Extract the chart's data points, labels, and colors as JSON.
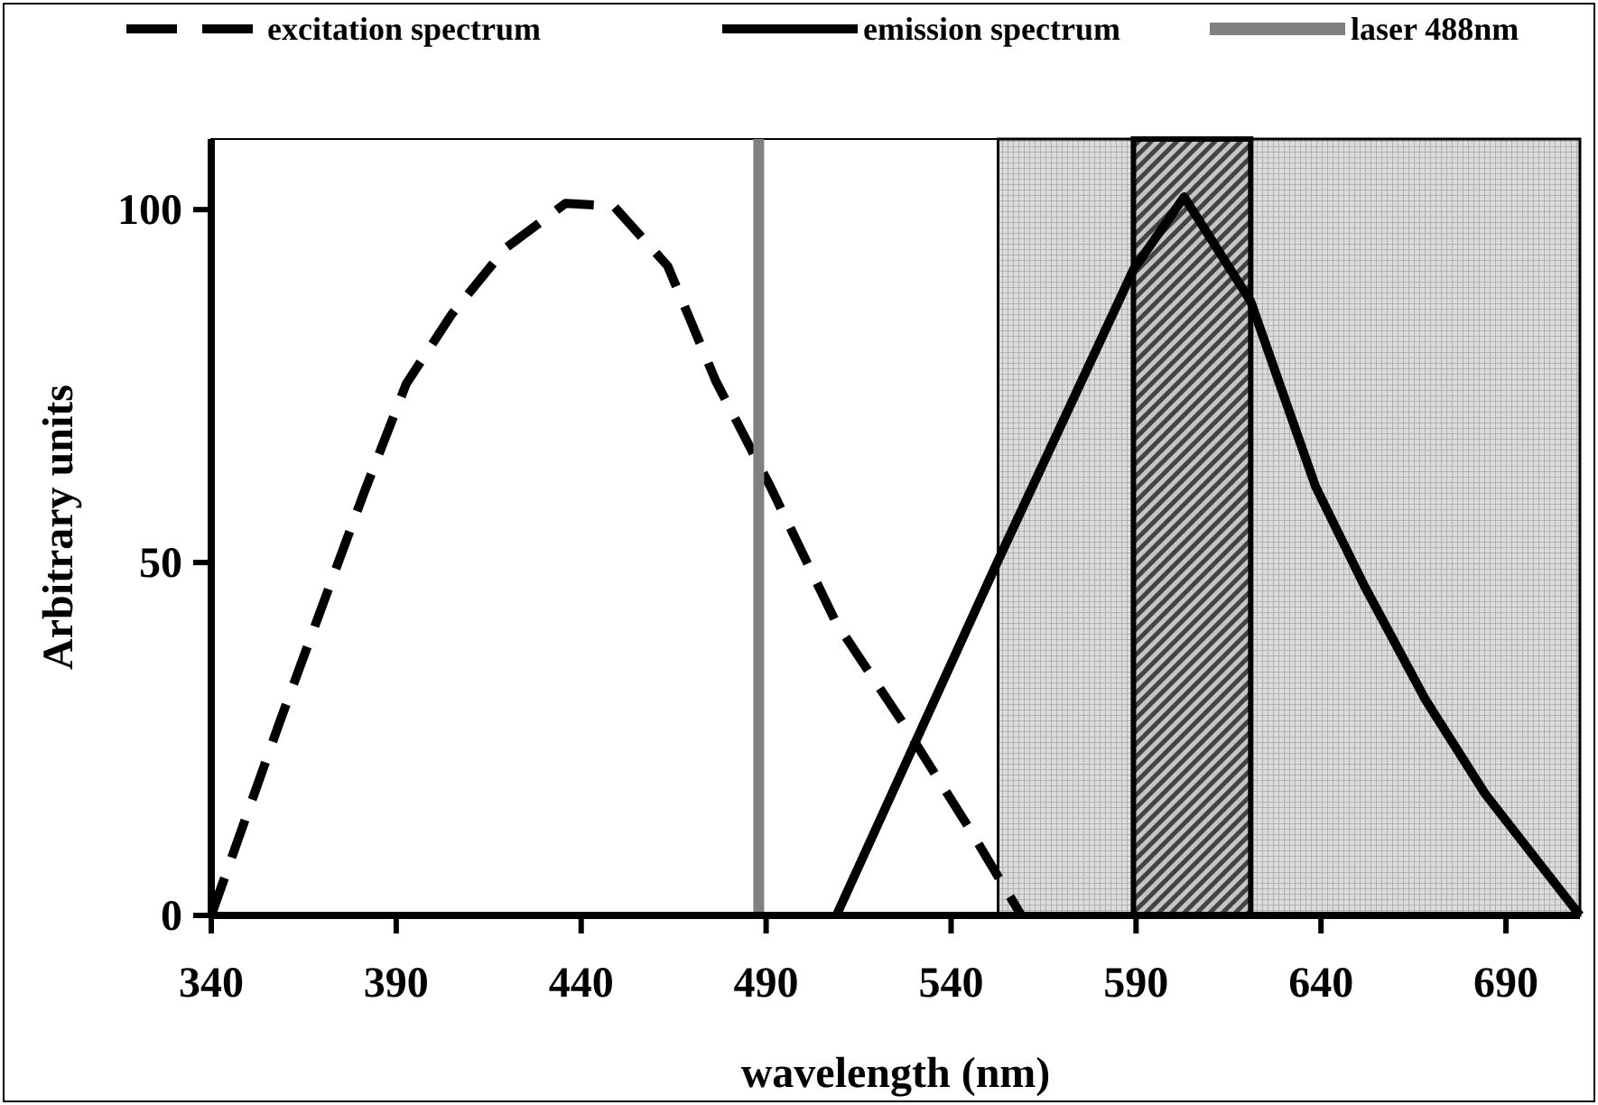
{
  "chart_data": {
    "type": "line",
    "xlabel": "wavelength (nm)",
    "ylabel": "Arbitrary units",
    "xlim": [
      340,
      710
    ],
    "xticks": [
      340,
      390,
      440,
      490,
      540,
      590,
      640,
      690
    ],
    "ylim": [
      0,
      110
    ],
    "yticks": [
      0,
      50,
      100
    ],
    "grid": false,
    "legend": "top",
    "marker": "none",
    "series": [
      {
        "name": "excitation spectrum",
        "color": "#000000",
        "line_style": "dashed",
        "x": [
          340,
          358.5,
          369.9,
          381.3,
          392.7,
          404.9,
          419.5,
          435.8,
          448.8,
          463.4,
          476.4,
          491.1,
          508.9,
          526.8,
          544.7,
          559
        ],
        "values": [
          0,
          27.4,
          43.7,
          59.9,
          75.3,
          85.1,
          94.5,
          100.9,
          100.5,
          92,
          75.7,
          60.8,
          41.5,
          27.4,
          12.5,
          0
        ]
      },
      {
        "name": "emission spectrum",
        "color": "#000000",
        "line_style": "solid",
        "x": [
          509,
          552.2,
          589.3,
          603,
          621,
          638.5,
          651.7,
          668.3,
          684.4,
          710
        ],
        "values": [
          0,
          49.7,
          91.5,
          101.8,
          87,
          60.8,
          46.7,
          30.5,
          17.2,
          0
        ]
      },
      {
        "name": "laser 488nm",
        "color": "#808080",
        "line_style": "solid",
        "x": [
          488,
          488
        ],
        "values": [
          0,
          110
        ]
      }
    ],
    "bands": [
      {
        "axis": "x",
        "from": 552.7,
        "to": 710,
        "color": "#c8c8c8"
      },
      {
        "axis": "x",
        "from": 589.3,
        "to": 621,
        "color": "#5a5a5a"
      }
    ]
  }
}
